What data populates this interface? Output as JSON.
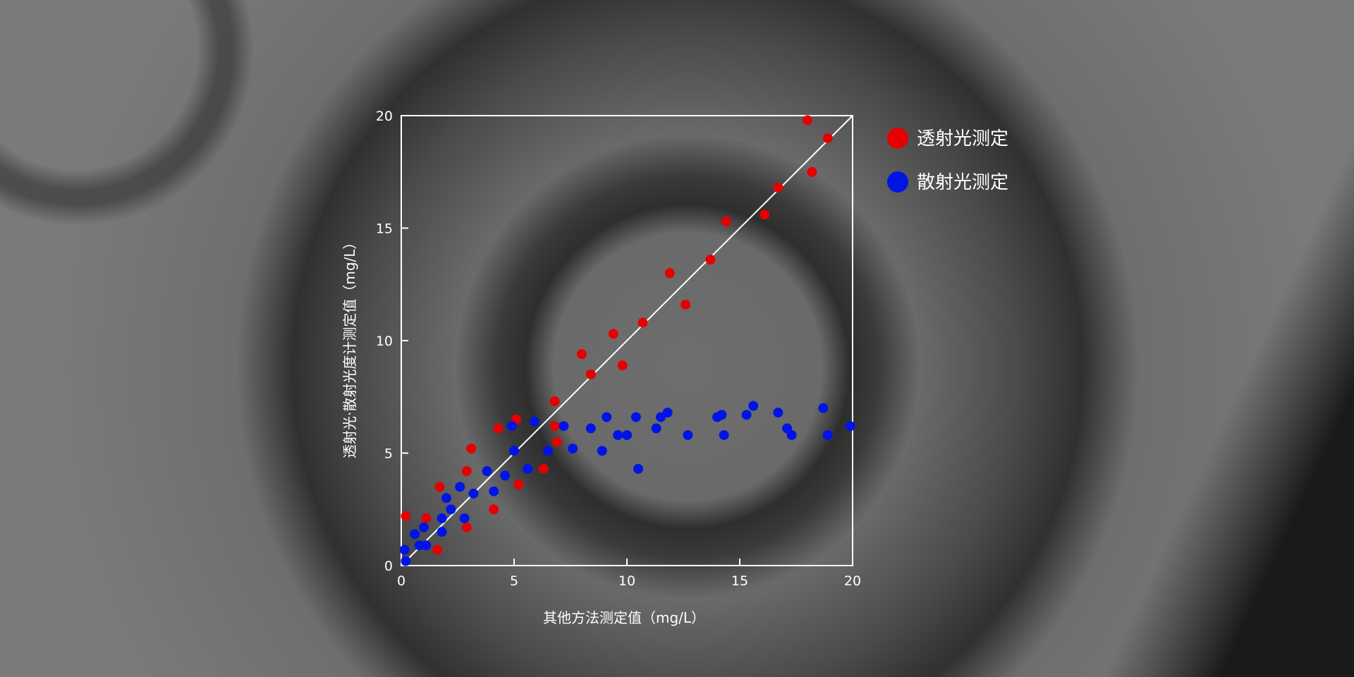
{
  "chart_data": {
    "type": "scatter",
    "xlabel": "其他方法测定值（mg/L）",
    "ylabel": "透射光·散射光度计测定值（mg/L）",
    "xlim": [
      0,
      20
    ],
    "ylim": [
      0,
      20
    ],
    "xticks": [
      "0",
      "5",
      "10",
      "15",
      "20"
    ],
    "yticks": [
      "0",
      "5",
      "10",
      "15",
      "20"
    ],
    "grid": false,
    "legend_placement": "right",
    "reference_line": "y = x",
    "series": [
      {
        "name": "透射光测定",
        "color": "#e60000",
        "points": [
          [
            0.2,
            2.2
          ],
          [
            1.1,
            2.1
          ],
          [
            1.7,
            3.5
          ],
          [
            1.6,
            0.7
          ],
          [
            2.9,
            4.2
          ],
          [
            2.9,
            1.7
          ],
          [
            3.1,
            5.2
          ],
          [
            4.1,
            2.5
          ],
          [
            4.3,
            6.1
          ],
          [
            5.1,
            6.5
          ],
          [
            5.2,
            3.6
          ],
          [
            6.3,
            4.3
          ],
          [
            6.8,
            7.3
          ],
          [
            6.8,
            6.2
          ],
          [
            6.9,
            5.5
          ],
          [
            8.0,
            9.4
          ],
          [
            8.4,
            8.5
          ],
          [
            9.4,
            10.3
          ],
          [
            9.8,
            8.9
          ],
          [
            10.7,
            10.8
          ],
          [
            11.9,
            13.0
          ],
          [
            12.6,
            11.6
          ],
          [
            13.7,
            13.6
          ],
          [
            14.4,
            15.3
          ],
          [
            16.1,
            15.6
          ],
          [
            16.7,
            16.8
          ],
          [
            18.0,
            19.8
          ],
          [
            18.2,
            17.5
          ],
          [
            18.9,
            19.0
          ]
        ]
      },
      {
        "name": "散射光测定",
        "color": "#0014e6",
        "points": [
          [
            0.15,
            0.7
          ],
          [
            0.2,
            0.2
          ],
          [
            0.6,
            1.4
          ],
          [
            0.8,
            0.9
          ],
          [
            1.0,
            1.7
          ],
          [
            1.1,
            0.9
          ],
          [
            1.8,
            2.1
          ],
          [
            1.8,
            1.5
          ],
          [
            2.0,
            3.0
          ],
          [
            2.2,
            2.5
          ],
          [
            2.6,
            3.5
          ],
          [
            2.8,
            2.1
          ],
          [
            3.2,
            3.2
          ],
          [
            3.8,
            4.2
          ],
          [
            4.1,
            3.3
          ],
          [
            4.6,
            4.0
          ],
          [
            4.9,
            6.2
          ],
          [
            5.0,
            5.1
          ],
          [
            5.6,
            4.3
          ],
          [
            5.9,
            6.4
          ],
          [
            6.5,
            5.1
          ],
          [
            7.2,
            6.2
          ],
          [
            7.6,
            5.2
          ],
          [
            8.4,
            6.1
          ],
          [
            8.9,
            5.1
          ],
          [
            9.1,
            6.6
          ],
          [
            9.6,
            5.8
          ],
          [
            10.0,
            5.8
          ],
          [
            10.4,
            6.6
          ],
          [
            10.5,
            4.3
          ],
          [
            11.3,
            6.1
          ],
          [
            11.5,
            6.6
          ],
          [
            11.8,
            6.8
          ],
          [
            12.7,
            5.8
          ],
          [
            14.0,
            6.6
          ],
          [
            14.2,
            6.7
          ],
          [
            14.3,
            5.8
          ],
          [
            15.3,
            6.7
          ],
          [
            15.6,
            7.1
          ],
          [
            16.7,
            6.8
          ],
          [
            17.1,
            6.1
          ],
          [
            17.3,
            5.8
          ],
          [
            18.7,
            7.0
          ],
          [
            18.9,
            5.8
          ],
          [
            19.9,
            6.2
          ]
        ]
      }
    ]
  }
}
